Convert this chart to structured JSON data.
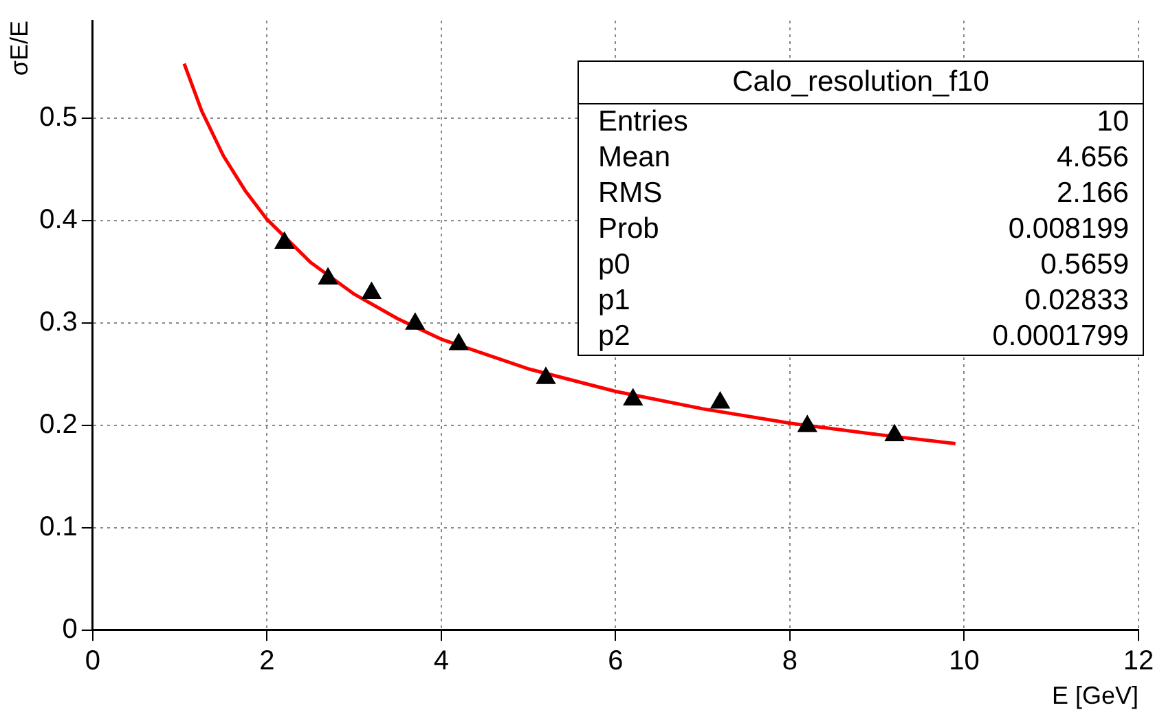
{
  "chart_data": {
    "type": "scatter",
    "xlabel": "E [GeV]",
    "ylabel": "σE/E",
    "xlim": [
      0,
      12
    ],
    "xticks": [
      0,
      2,
      4,
      6,
      8,
      10,
      12
    ],
    "ylim": [
      0,
      0.595
    ],
    "yticks": [
      0,
      0.1,
      0.2,
      0.3,
      0.4,
      0.5
    ],
    "grid": true,
    "legend": false,
    "series": [
      {
        "type": "scatter",
        "color": "#000000",
        "marker": "triangle",
        "x": [
          2.2,
          2.7,
          3.2,
          3.7,
          4.2,
          5.2,
          6.2,
          7.2,
          8.2,
          9.2
        ],
        "values": [
          0.378,
          0.343,
          0.329,
          0.299,
          0.279,
          0.246,
          0.225,
          0.222,
          0.199,
          0.19
        ]
      },
      {
        "type": "line",
        "color": "#ff0000",
        "marker": "none",
        "x": [
          1.05,
          1.25,
          1.5,
          1.75,
          2,
          2.5,
          3,
          3.5,
          4,
          5,
          6,
          7,
          8,
          9,
          9.9
        ],
        "values": [
          0.553,
          0.507,
          0.463,
          0.429,
          0.401,
          0.359,
          0.328,
          0.304,
          0.284,
          0.255,
          0.233,
          0.216,
          0.202,
          0.191,
          0.182
        ]
      }
    ],
    "annotations": [
      "Calo_resolution_f10",
      "Entries",
      "10",
      "Mean",
      "4.656",
      "RMS",
      "2.166",
      "Prob",
      "0.008199",
      "p0",
      "0.5659",
      "p1",
      "0.02833",
      "p2",
      "0.0001799"
    ]
  }
}
